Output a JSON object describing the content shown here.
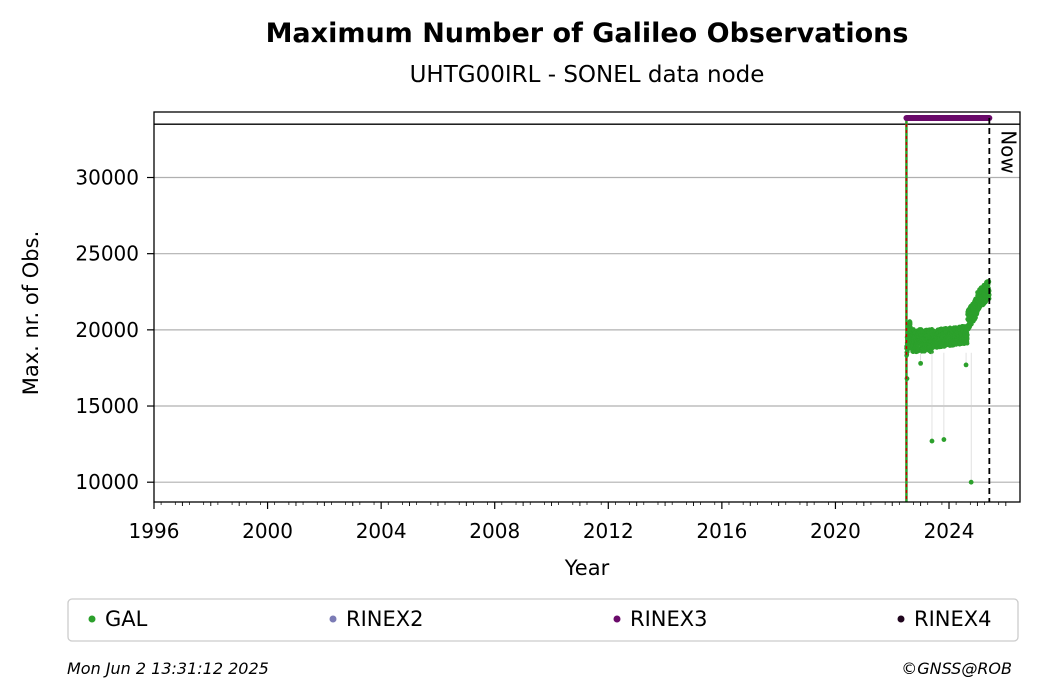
{
  "chart_data": {
    "type": "scatter",
    "title": "Maximum Number of Galileo Observations",
    "subtitle": "UHTG00IRL - SONEL data node",
    "xlabel": "Year",
    "ylabel": "Max. nr. of Obs.",
    "xlim": [
      1996,
      2026.5
    ],
    "ylim": [
      8700,
      34300
    ],
    "x_ticks": [
      1996,
      2000,
      2004,
      2008,
      2012,
      2016,
      2020,
      2024
    ],
    "y_ticks": [
      10000,
      15000,
      20000,
      25000,
      30000
    ],
    "grid": "horizontal",
    "header_band_y": 33500,
    "start_line_x": 2022.5,
    "now_line": {
      "x": 2025.42,
      "label": "Now"
    },
    "rinex3_bar": {
      "x_start": 2022.5,
      "x_end": 2025.42
    },
    "series": [
      {
        "name": "GAL",
        "color": "#2ca02c",
        "segments": [
          {
            "x_start": 2022.5,
            "x_end": 2022.65,
            "y_base": 18800,
            "y_spread": 1400,
            "x_ramp": 1500
          },
          {
            "x_start": 2022.65,
            "x_end": 2023.4,
            "y_base": 19300,
            "y_spread": 1500,
            "x_ramp": 0
          },
          {
            "x_start": 2023.4,
            "x_end": 2024.65,
            "y_base": 19400,
            "y_spread": 1200,
            "x_ramp": 300
          },
          {
            "x_start": 2024.65,
            "x_end": 2025.0,
            "y_base": 20600,
            "y_spread": 1300,
            "x_ramp": 1000
          },
          {
            "x_start": 2025.0,
            "x_end": 2025.42,
            "y_base": 21900,
            "y_spread": 1300,
            "x_ramp": 800
          }
        ],
        "outliers": [
          {
            "x": 2022.52,
            "y": 16800
          },
          {
            "x": 2023.4,
            "y": 12700
          },
          {
            "x": 2023.82,
            "y": 12800
          },
          {
            "x": 2024.78,
            "y": 10000
          },
          {
            "x": 2023.0,
            "y": 17800
          },
          {
            "x": 2024.6,
            "y": 17700
          }
        ]
      }
    ],
    "legend": {
      "placement": "bottom",
      "entries": [
        {
          "name": "GAL",
          "color": "#2ca02c"
        },
        {
          "name": "RINEX2",
          "color": "#7b7bb5"
        },
        {
          "name": "RINEX3",
          "color": "#6a0a6a"
        },
        {
          "name": "RINEX4",
          "color": "#20061e"
        }
      ]
    },
    "colors": {
      "start_line_red": "#cc0000",
      "grid": "#b0b0b0",
      "now_line": "#000000"
    }
  },
  "footer": {
    "timestamp": "Mon Jun  2 13:31:12 2025",
    "copyright": "©GNSS@ROB"
  }
}
